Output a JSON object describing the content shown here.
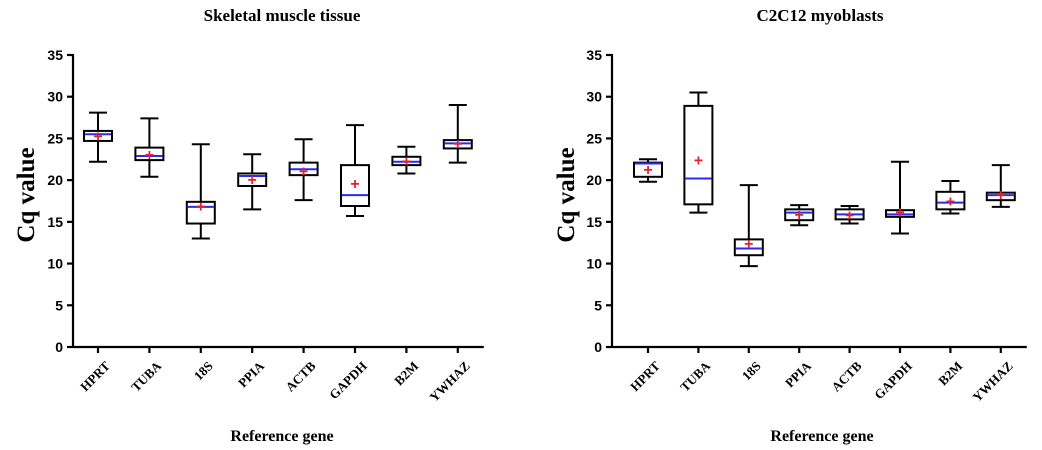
{
  "chart_data": [
    {
      "type": "box",
      "title": "Skeletal muscle tissue",
      "xlabel": "Reference gene",
      "ylabel": "Cq value",
      "ylim": [
        0,
        35
      ],
      "yticks": [
        0,
        5,
        10,
        15,
        20,
        25,
        30,
        35
      ],
      "categories": [
        "HPRT",
        "TUBA",
        "18S",
        "PPIA",
        "ACTB",
        "GAPDH",
        "B2M",
        "YWHAZ"
      ],
      "boxes": [
        {
          "min": 22.2,
          "q1": 24.7,
          "median": 25.5,
          "q3": 25.9,
          "max": 28.1,
          "mean": 25.3
        },
        {
          "min": 20.4,
          "q1": 22.4,
          "median": 22.9,
          "q3": 23.9,
          "max": 27.4,
          "mean": 23.1
        },
        {
          "min": 13.0,
          "q1": 14.8,
          "median": 16.8,
          "q3": 17.4,
          "max": 24.3,
          "mean": 16.9
        },
        {
          "min": 16.5,
          "q1": 19.3,
          "median": 20.5,
          "q3": 20.8,
          "max": 23.1,
          "mean": 20.1
        },
        {
          "min": 17.6,
          "q1": 20.6,
          "median": 21.3,
          "q3": 22.1,
          "max": 24.9,
          "mean": 21.1
        },
        {
          "min": 15.7,
          "q1": 16.9,
          "median": 18.2,
          "q3": 21.8,
          "max": 26.6,
          "mean": 19.6
        },
        {
          "min": 20.8,
          "q1": 21.8,
          "median": 22.2,
          "q3": 22.8,
          "max": 24.0,
          "mean": 22.3
        },
        {
          "min": 22.1,
          "q1": 23.8,
          "median": 24.4,
          "q3": 24.8,
          "max": 29.0,
          "mean": 24.4
        }
      ],
      "colors": {
        "median": "#2a2af0",
        "mean": "#e8202a"
      }
    },
    {
      "type": "box",
      "title": "C2C12 myoblasts",
      "xlabel": "Reference gene",
      "ylabel": "Cq value",
      "ylim": [
        0,
        35
      ],
      "yticks": [
        0,
        5,
        10,
        15,
        20,
        25,
        30,
        35
      ],
      "categories": [
        "HPRT",
        "TUBA",
        "18S",
        "PPIA",
        "ACTB",
        "GAPDH",
        "B2M",
        "YWHAZ"
      ],
      "boxes": [
        {
          "min": 19.8,
          "q1": 20.4,
          "median": 22.0,
          "q3": 22.1,
          "max": 22.5,
          "mean": 21.3
        },
        {
          "min": 16.1,
          "q1": 17.1,
          "median": 20.2,
          "q3": 28.9,
          "max": 30.5,
          "mean": 22.4
        },
        {
          "min": 9.7,
          "q1": 11.0,
          "median": 11.8,
          "q3": 12.9,
          "max": 19.4,
          "mean": 12.4
        },
        {
          "min": 14.6,
          "q1": 15.2,
          "median": 16.1,
          "q3": 16.5,
          "max": 17.0,
          "mean": 15.9
        },
        {
          "min": 14.8,
          "q1": 15.3,
          "median": 15.9,
          "q3": 16.5,
          "max": 16.9,
          "mean": 15.8
        },
        {
          "min": 13.6,
          "q1": 15.6,
          "median": 15.9,
          "q3": 16.4,
          "max": 22.2,
          "mean": 16.2
        },
        {
          "min": 16.0,
          "q1": 16.5,
          "median": 17.3,
          "q3": 18.6,
          "max": 19.9,
          "mean": 17.5
        },
        {
          "min": 16.8,
          "q1": 17.6,
          "median": 18.2,
          "q3": 18.5,
          "max": 21.8,
          "mean": 18.3
        }
      ],
      "colors": {
        "median": "#2a2af0",
        "mean": "#e8202a"
      }
    }
  ]
}
